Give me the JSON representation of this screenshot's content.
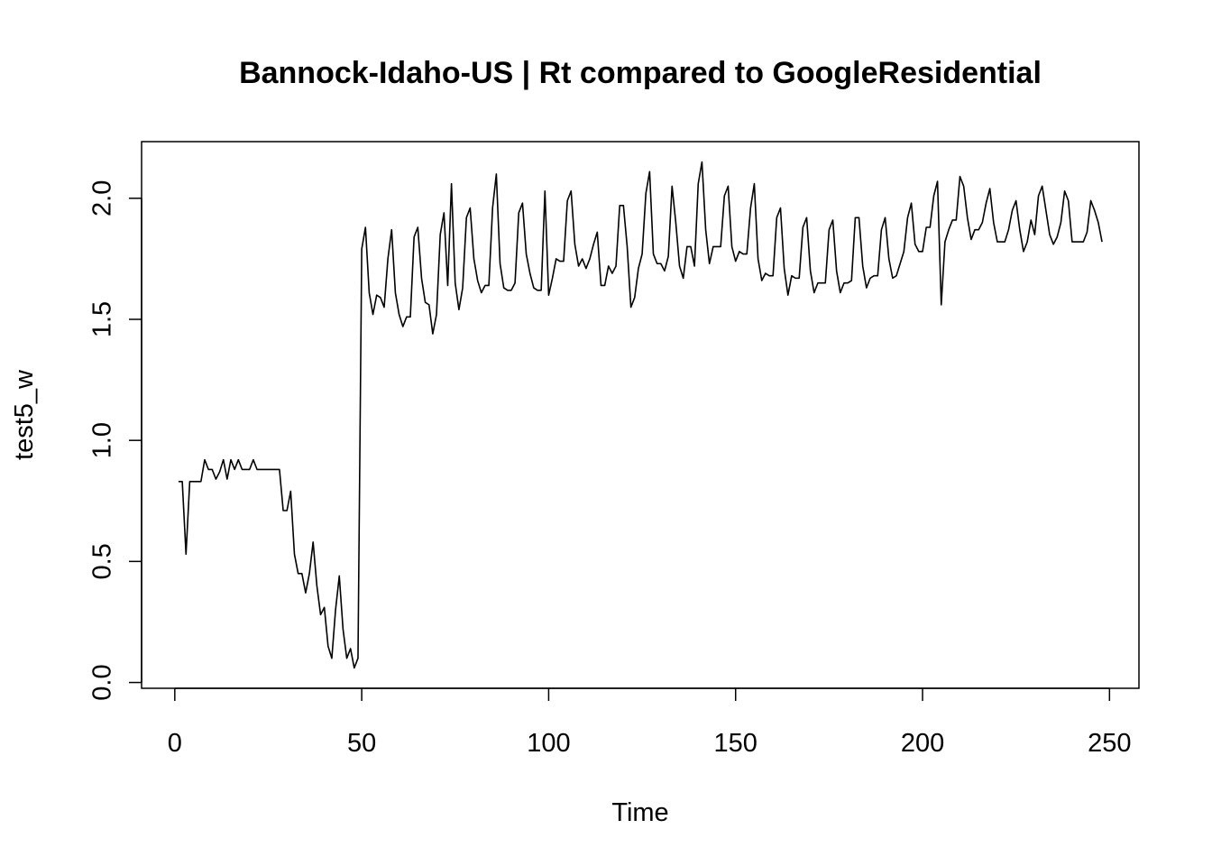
{
  "chart_data": {
    "type": "line",
    "title": "Bannock-Idaho-US | Rt compared to GoogleResidential",
    "x_label": "Time",
    "y_label": "test5_w",
    "x": [
      1,
      2,
      3,
      4,
      5,
      6,
      7,
      8,
      9,
      10,
      11,
      12,
      13,
      14,
      15,
      16,
      17,
      18,
      19,
      20,
      21,
      22,
      23,
      24,
      25,
      26,
      27,
      28,
      29,
      30,
      31,
      32,
      33,
      34,
      35,
      36,
      37,
      38,
      39,
      40,
      41,
      42,
      43,
      44,
      45,
      46,
      47,
      48,
      49,
      50,
      51,
      52,
      53,
      54,
      55,
      56,
      57,
      58,
      59,
      60,
      61,
      62,
      63,
      64,
      65,
      66,
      67,
      68,
      69,
      70,
      71,
      72,
      73,
      74,
      75,
      76,
      77,
      78,
      79,
      80,
      81,
      82,
      83,
      84,
      85,
      86,
      87,
      88,
      89,
      90,
      91,
      92,
      93,
      94,
      95,
      96,
      97,
      98,
      99,
      100,
      101,
      102,
      103,
      104,
      105,
      106,
      107,
      108,
      109,
      110,
      111,
      112,
      113,
      114,
      115,
      116,
      117,
      118,
      119,
      120,
      121,
      122,
      123,
      124,
      125,
      126,
      127,
      128,
      129,
      130,
      131,
      132,
      133,
      134,
      135,
      136,
      137,
      138,
      139,
      140,
      141,
      142,
      143,
      144,
      145,
      146,
      147,
      148,
      149,
      150,
      151,
      152,
      153,
      154,
      155,
      156,
      157,
      158,
      159,
      160,
      161,
      162,
      163,
      164,
      165,
      166,
      167,
      168,
      169,
      170,
      171,
      172,
      173,
      174,
      175,
      176,
      177,
      178,
      179,
      180,
      181,
      182,
      183,
      184,
      185,
      186,
      187,
      188,
      189,
      190,
      191,
      192,
      193,
      194,
      195,
      196,
      197,
      198,
      199,
      200,
      201,
      202,
      203,
      204,
      205,
      206,
      207,
      208,
      209,
      210,
      211,
      212,
      213,
      214,
      215,
      216,
      217,
      218,
      219,
      220,
      221,
      222,
      223,
      224,
      225,
      226,
      227,
      228,
      229,
      230,
      231,
      232,
      233,
      234,
      235,
      236,
      237,
      238,
      239,
      240,
      241,
      242,
      243,
      244,
      245,
      246,
      247,
      248
    ],
    "series": [
      {
        "name": "test5_w",
        "color": "#000000",
        "values": [
          0.83,
          0.83,
          0.53,
          0.83,
          0.83,
          0.83,
          0.83,
          0.92,
          0.88,
          0.88,
          0.84,
          0.87,
          0.92,
          0.84,
          0.92,
          0.88,
          0.92,
          0.88,
          0.88,
          0.88,
          0.92,
          0.88,
          0.88,
          0.88,
          0.88,
          0.88,
          0.88,
          0.88,
          0.71,
          0.71,
          0.79,
          0.53,
          0.45,
          0.45,
          0.37,
          0.45,
          0.58,
          0.4,
          0.28,
          0.31,
          0.15,
          0.1,
          0.3,
          0.44,
          0.22,
          0.1,
          0.14,
          0.06,
          0.1,
          1.79,
          1.88,
          1.61,
          1.52,
          1.6,
          1.59,
          1.55,
          1.75,
          1.87,
          1.61,
          1.52,
          1.47,
          1.51,
          1.51,
          1.84,
          1.88,
          1.67,
          1.57,
          1.56,
          1.44,
          1.52,
          1.85,
          1.94,
          1.64,
          2.06,
          1.65,
          1.54,
          1.63,
          1.92,
          1.96,
          1.75,
          1.66,
          1.61,
          1.64,
          1.64,
          1.96,
          2.1,
          1.73,
          1.63,
          1.62,
          1.62,
          1.65,
          1.94,
          1.98,
          1.77,
          1.69,
          1.63,
          1.62,
          1.62,
          2.03,
          1.6,
          1.67,
          1.75,
          1.74,
          1.74,
          1.99,
          2.03,
          1.81,
          1.72,
          1.75,
          1.71,
          1.75,
          1.81,
          1.86,
          1.64,
          1.64,
          1.72,
          1.69,
          1.72,
          1.97,
          1.97,
          1.8,
          1.55,
          1.59,
          1.71,
          1.77,
          2.02,
          2.11,
          1.77,
          1.73,
          1.73,
          1.7,
          1.76,
          2.05,
          1.9,
          1.72,
          1.67,
          1.8,
          1.8,
          1.72,
          2.06,
          2.15,
          1.87,
          1.73,
          1.8,
          1.8,
          1.8,
          2.01,
          2.05,
          1.8,
          1.74,
          1.78,
          1.77,
          1.77,
          1.96,
          2.06,
          1.75,
          1.66,
          1.69,
          1.68,
          1.68,
          1.92,
          1.96,
          1.71,
          1.6,
          1.68,
          1.67,
          1.67,
          1.88,
          1.92,
          1.7,
          1.61,
          1.65,
          1.65,
          1.65,
          1.87,
          1.91,
          1.7,
          1.61,
          1.65,
          1.65,
          1.66,
          1.92,
          1.92,
          1.72,
          1.63,
          1.67,
          1.68,
          1.68,
          1.87,
          1.92,
          1.75,
          1.67,
          1.68,
          1.73,
          1.78,
          1.92,
          1.98,
          1.81,
          1.78,
          1.78,
          1.88,
          1.88,
          2.01,
          2.07,
          1.56,
          1.82,
          1.87,
          1.91,
          1.91,
          2.09,
          2.05,
          1.92,
          1.83,
          1.87,
          1.87,
          1.9,
          1.98,
          2.04,
          1.9,
          1.82,
          1.82,
          1.82,
          1.87,
          1.95,
          1.99,
          1.87,
          1.78,
          1.82,
          1.91,
          1.85,
          2.01,
          2.05,
          1.95,
          1.85,
          1.81,
          1.84,
          1.9,
          2.03,
          1.99,
          1.82,
          1.82,
          1.82,
          1.82,
          1.86,
          1.99,
          1.95,
          1.9,
          1.82
        ]
      }
    ],
    "xlim": [
      -8.88,
      257.88
    ],
    "ylim": [
      -0.024,
      2.234
    ],
    "xticks": [
      0,
      50,
      100,
      150,
      200,
      250
    ],
    "yticks": [
      {
        "value": 0,
        "label": "0.0"
      },
      {
        "value": 0.5,
        "label": "0.5"
      },
      {
        "value": 1,
        "label": "1.0"
      },
      {
        "value": 1.5,
        "label": "1.5"
      },
      {
        "value": 2,
        "label": "2.0"
      }
    ]
  }
}
